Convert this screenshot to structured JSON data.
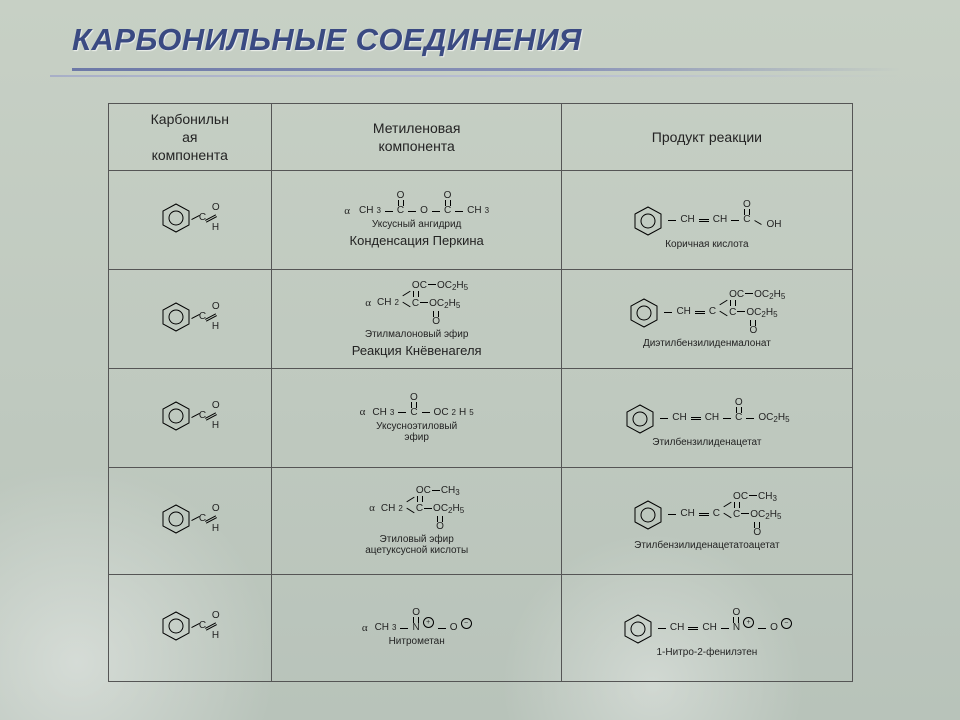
{
  "title": "КАРБОНИЛЬНЫЕ СОЕДИНЕНИЯ",
  "headers": {
    "c1": "Карбонильн\nая\nкомпонента",
    "c2": "Метиленовая\nкомпонента",
    "c3": "Продукт реакции"
  },
  "rows": [
    {
      "methylene_formula": "CH₃—C—O—C—CH₃",
      "methylene_sub": "Уксусный ангидрид",
      "methylene_caption": "Конденсация Перкина",
      "product_chain_tail": "OH",
      "product_caption": "Коричная кислота"
    },
    {
      "methylene_sub": "Этилмалоновый эфир",
      "methylene_caption": "Реакция Кнёвенагеля",
      "branch_upper": "OC₂H₅",
      "branch_lower": "OC₂H₅",
      "product_upper": "OC₂H₅",
      "product_lower": "OC₂H₅",
      "product_caption": "Диэтилбензилиденмалонат"
    },
    {
      "methylene_formula": "CH₃—C—OC₂H₅",
      "methylene_sub": "Уксусноэтиловый\nэфир",
      "product_tail": "OC₂H₅",
      "product_caption": "Этилбензилиденацетат"
    },
    {
      "methylene_sub": "Этиловый эфир\nацетуксусной кислоты",
      "branch_upper": "CH₃",
      "branch_lower": "OC₂H₅",
      "product_upper": "CH₃",
      "product_lower": "OC₂H₅",
      "product_caption": "Этилбензилиденацетатоацетат"
    },
    {
      "methylene_formula": "CH₃—N⁺—O⁻",
      "methylene_sub": "Нитрометан",
      "product_caption": "1-Нитро-2-фенилэтен"
    }
  ]
}
